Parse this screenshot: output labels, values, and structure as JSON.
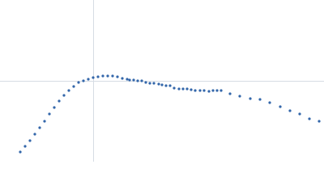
{
  "chart_data": {
    "type": "scatter",
    "color": "#3366aa",
    "x": [
      -90,
      -84,
      -78,
      -72,
      -66,
      -60,
      -54,
      -48,
      -42,
      -36,
      -30,
      -24,
      -18,
      -12,
      -6,
      0,
      6,
      12,
      18,
      24,
      30,
      36,
      42,
      45,
      50,
      55,
      60,
      65,
      70,
      75,
      81,
      85,
      90,
      95,
      100,
      106,
      111,
      116,
      121,
      126,
      132,
      137,
      143,
      148,
      153,
      158,
      169,
      181,
      194,
      206,
      218,
      231,
      243,
      255,
      267,
      279
    ],
    "y": [
      -88,
      -81,
      -74,
      -66,
      -58,
      -50,
      -41,
      -33,
      -25,
      -18,
      -12,
      -7,
      -2,
      0,
      2,
      4,
      5,
      6,
      6,
      6,
      5,
      3,
      2,
      1,
      1,
      0,
      0,
      -2,
      -3,
      -3,
      -4,
      -5,
      -6,
      -6,
      -9,
      -10,
      -10,
      -10,
      -11,
      -12,
      -12,
      -12,
      -13,
      -12,
      -12,
      -12,
      -16,
      -19,
      -22,
      -23,
      -27,
      -32,
      -37,
      -41,
      -47,
      -50
    ],
    "xlim": [
      -115,
      285
    ],
    "ylim": [
      -100,
      100
    ],
    "xticks": [
      0
    ],
    "yticks": [
      0
    ],
    "grid": true
  }
}
